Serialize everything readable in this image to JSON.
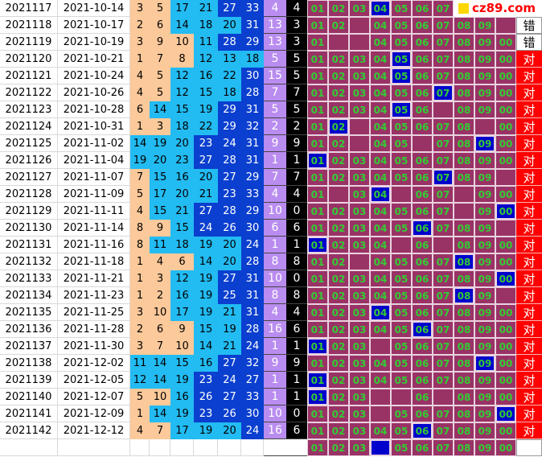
{
  "watermark": "cz89.com",
  "result_labels": {
    "hit": "对",
    "miss": "错"
  },
  "colors": {
    "col_a": "#fcc99a",
    "col_b": "#22bbf2",
    "col_c": "#0b3fcf",
    "sum_col": "#b98cf0",
    "tail_col": "#000000",
    "cell_bg": "#993366",
    "cell_hit": "#0000cc",
    "num_text": "#33cc33",
    "result_bg": "#ff0000"
  },
  "rows": [
    {
      "issue": "2021117",
      "date": "2021-10-14",
      "nums": [
        "3",
        "5",
        "17",
        "21",
        "27",
        "33"
      ],
      "sum": "4",
      "tail": "4",
      "hit": "04",
      "result": ""
    },
    {
      "issue": "2021118",
      "date": "2021-10-17",
      "nums": [
        "2",
        "6",
        "14",
        "18",
        "20",
        "31"
      ],
      "sum": "13",
      "tail": "3",
      "hit": "",
      "result": "错"
    },
    {
      "issue": "2021119",
      "date": "2021-10-19",
      "nums": [
        "3",
        "9",
        "10",
        "11",
        "28",
        "29"
      ],
      "sum": "13",
      "tail": "3",
      "hit": "",
      "result": "错"
    },
    {
      "issue": "2021120",
      "date": "2021-10-21",
      "nums": [
        "1",
        "7",
        "8",
        "12",
        "13",
        "18"
      ],
      "sum": "5",
      "tail": "5",
      "hit": "05",
      "result": "对"
    },
    {
      "issue": "2021121",
      "date": "2021-10-24",
      "nums": [
        "4",
        "5",
        "12",
        "16",
        "22",
        "30"
      ],
      "sum": "15",
      "tail": "5",
      "hit": "05",
      "result": "对"
    },
    {
      "issue": "2021122",
      "date": "2021-10-26",
      "nums": [
        "4",
        "5",
        "12",
        "15",
        "18",
        "28"
      ],
      "sum": "7",
      "tail": "7",
      "hit": "07",
      "result": "对"
    },
    {
      "issue": "2021123",
      "date": "2021-10-28",
      "nums": [
        "6",
        "14",
        "15",
        "19",
        "29",
        "31"
      ],
      "sum": "5",
      "tail": "5",
      "hit": "05",
      "result": "对"
    },
    {
      "issue": "2021124",
      "date": "2021-10-31",
      "nums": [
        "1",
        "3",
        "18",
        "22",
        "29",
        "32"
      ],
      "sum": "2",
      "tail": "2",
      "hit": "02",
      "result": "对"
    },
    {
      "issue": "2021125",
      "date": "2021-11-02",
      "nums": [
        "14",
        "19",
        "20",
        "23",
        "24",
        "31"
      ],
      "sum": "9",
      "tail": "9",
      "hit": "09",
      "result": "对"
    },
    {
      "issue": "2021126",
      "date": "2021-11-04",
      "nums": [
        "19",
        "20",
        "23",
        "27",
        "28",
        "31"
      ],
      "sum": "1",
      "tail": "1",
      "hit": "01",
      "result": "对"
    },
    {
      "issue": "2021127",
      "date": "2021-11-07",
      "nums": [
        "7",
        "15",
        "16",
        "20",
        "27",
        "29"
      ],
      "sum": "7",
      "tail": "7",
      "hit": "07",
      "result": "对"
    },
    {
      "issue": "2021128",
      "date": "2021-11-09",
      "nums": [
        "5",
        "17",
        "20",
        "21",
        "23",
        "33"
      ],
      "sum": "4",
      "tail": "4",
      "hit": "04",
      "result": "对"
    },
    {
      "issue": "2021129",
      "date": "2021-11-11",
      "nums": [
        "4",
        "15",
        "21",
        "27",
        "28",
        "29"
      ],
      "sum": "10",
      "tail": "0",
      "hit": "00",
      "result": "对"
    },
    {
      "issue": "2021130",
      "date": "2021-11-14",
      "nums": [
        "8",
        "9",
        "15",
        "24",
        "26",
        "30"
      ],
      "sum": "6",
      "tail": "6",
      "hit": "06",
      "result": "对"
    },
    {
      "issue": "2021131",
      "date": "2021-11-16",
      "nums": [
        "8",
        "11",
        "18",
        "19",
        "20",
        "24"
      ],
      "sum": "1",
      "tail": "1",
      "hit": "01",
      "result": "对"
    },
    {
      "issue": "2021132",
      "date": "2021-11-18",
      "nums": [
        "1",
        "4",
        "6",
        "14",
        "20",
        "28"
      ],
      "sum": "8",
      "tail": "8",
      "hit": "08",
      "result": "对"
    },
    {
      "issue": "2021133",
      "date": "2021-11-21",
      "nums": [
        "1",
        "3",
        "12",
        "19",
        "27",
        "31"
      ],
      "sum": "10",
      "tail": "0",
      "hit": "00",
      "result": "对"
    },
    {
      "issue": "2021134",
      "date": "2021-11-23",
      "nums": [
        "1",
        "2",
        "16",
        "19",
        "25",
        "31"
      ],
      "sum": "8",
      "tail": "8",
      "hit": "08",
      "result": "对"
    },
    {
      "issue": "2021135",
      "date": "2021-11-25",
      "nums": [
        "3",
        "10",
        "17",
        "19",
        "21",
        "31"
      ],
      "sum": "4",
      "tail": "4",
      "hit": "04",
      "result": "对"
    },
    {
      "issue": "2021136",
      "date": "2021-11-28",
      "nums": [
        "2",
        "6",
        "9",
        "15",
        "19",
        "28"
      ],
      "sum": "16",
      "tail": "6",
      "hit": "06",
      "result": "对"
    },
    {
      "issue": "2021137",
      "date": "2021-11-30",
      "nums": [
        "3",
        "7",
        "10",
        "14",
        "21",
        "24"
      ],
      "sum": "1",
      "tail": "1",
      "hit": "01",
      "result": "对"
    },
    {
      "issue": "2021138",
      "date": "2021-12-02",
      "nums": [
        "11",
        "14",
        "15",
        "16",
        "27",
        "32"
      ],
      "sum": "9",
      "tail": "9",
      "hit": "09",
      "result": "对"
    },
    {
      "issue": "2021139",
      "date": "2021-12-05",
      "nums": [
        "12",
        "14",
        "19",
        "23",
        "24",
        "27"
      ],
      "sum": "1",
      "tail": "1",
      "hit": "01",
      "result": "对"
    },
    {
      "issue": "2021140",
      "date": "2021-12-07",
      "nums": [
        "5",
        "10",
        "16",
        "26",
        "27",
        "33"
      ],
      "sum": "1",
      "tail": "1",
      "hit": "01",
      "result": "对"
    },
    {
      "issue": "2021141",
      "date": "2021-12-09",
      "nums": [
        "1",
        "14",
        "19",
        "23",
        "26",
        "30"
      ],
      "sum": "10",
      "tail": "0",
      "hit": "00",
      "result": "对"
    },
    {
      "issue": "2021142",
      "date": "2021-12-12",
      "nums": [
        "4",
        "7",
        "17",
        "19",
        "20",
        "24"
      ],
      "sum": "16",
      "tail": "6",
      "hit": "06",
      "result": "对"
    },
    {
      "issue": "",
      "date": "",
      "nums": [
        "",
        "",
        "",
        "",
        "",
        ""
      ],
      "sum": "",
      "tail": "",
      "hit": "04",
      "result": ""
    }
  ],
  "grid": [
    [
      "01",
      "02",
      "03",
      "04",
      "05",
      "06",
      "07",
      "",
      "",
      ""
    ],
    [
      "01",
      "02",
      "",
      "04",
      "05",
      "06",
      "07",
      "08",
      "09",
      ""
    ],
    [
      "01",
      "",
      "",
      "04",
      "05",
      "06",
      "07",
      "08",
      "09",
      "00"
    ],
    [
      "01",
      "02",
      "03",
      "04",
      "05",
      "06",
      "07",
      "08",
      "09",
      "00"
    ],
    [
      "01",
      "02",
      "03",
      "04",
      "05",
      "06",
      "07",
      "08",
      "09",
      "00"
    ],
    [
      "01",
      "02",
      "03",
      "04",
      "05",
      "06",
      "07",
      "08",
      "09",
      "00"
    ],
    [
      "01",
      "02",
      "03",
      "04",
      "05",
      "06",
      "",
      "08",
      "09",
      "00"
    ],
    [
      "01",
      "02",
      "",
      "04",
      "05",
      "06",
      "07",
      "08",
      "",
      "00"
    ],
    [
      "01",
      "02",
      "",
      "04",
      "05",
      "",
      "07",
      "08",
      "09",
      "00"
    ],
    [
      "01",
      "02",
      "03",
      "04",
      "05",
      "06",
      "07",
      "08",
      "09",
      "00"
    ],
    [
      "01",
      "02",
      "03",
      "04",
      "05",
      "06",
      "07",
      "08",
      "09",
      ""
    ],
    [
      "01",
      "",
      "03",
      "04",
      "",
      "06",
      "07",
      "",
      "09",
      "00"
    ],
    [
      "01",
      "02",
      "03",
      "04",
      "05",
      "06",
      "07",
      "",
      "09",
      "00"
    ],
    [
      "01",
      "02",
      "03",
      "04",
      "05",
      "06",
      "07",
      "08",
      "09",
      ""
    ],
    [
      "01",
      "02",
      "03",
      "04",
      "",
      "06",
      "",
      "08",
      "09",
      "00"
    ],
    [
      "01",
      "02",
      "",
      "04",
      "05",
      "06",
      "07",
      "08",
      "09",
      "00"
    ],
    [
      "01",
      "02",
      "03",
      "04",
      "05",
      "06",
      "07",
      "08",
      "09",
      "00"
    ],
    [
      "01",
      "02",
      "03",
      "04",
      "05",
      "06",
      "07",
      "08",
      "09",
      ""
    ],
    [
      "01",
      "02",
      "03",
      "04",
      "05",
      "06",
      "07",
      "08",
      "09",
      "00"
    ],
    [
      "01",
      "02",
      "03",
      "04",
      "05",
      "06",
      "07",
      "08",
      "09",
      "00"
    ],
    [
      "01",
      "02",
      "03",
      "",
      "05",
      "06",
      "07",
      "08",
      "09",
      "00"
    ],
    [
      "01",
      "02",
      "03",
      "04",
      "05",
      "06",
      "07",
      "08",
      "09",
      "00"
    ],
    [
      "01",
      "02",
      "03",
      "04",
      "05",
      "06",
      "07",
      "08",
      "09",
      "00"
    ],
    [
      "01",
      "02",
      "03",
      "",
      "",
      "06",
      "",
      "08",
      "09",
      "00"
    ],
    [
      "01",
      "02",
      "03",
      "",
      "05",
      "06",
      "07",
      "08",
      "09",
      "00"
    ],
    [
      "01",
      "02",
      "03",
      "04",
      "05",
      "06",
      "07",
      "08",
      "09",
      "00"
    ],
    [
      "01",
      "02",
      "03",
      "",
      "05",
      "06",
      "07",
      "08",
      "09",
      "00"
    ]
  ]
}
